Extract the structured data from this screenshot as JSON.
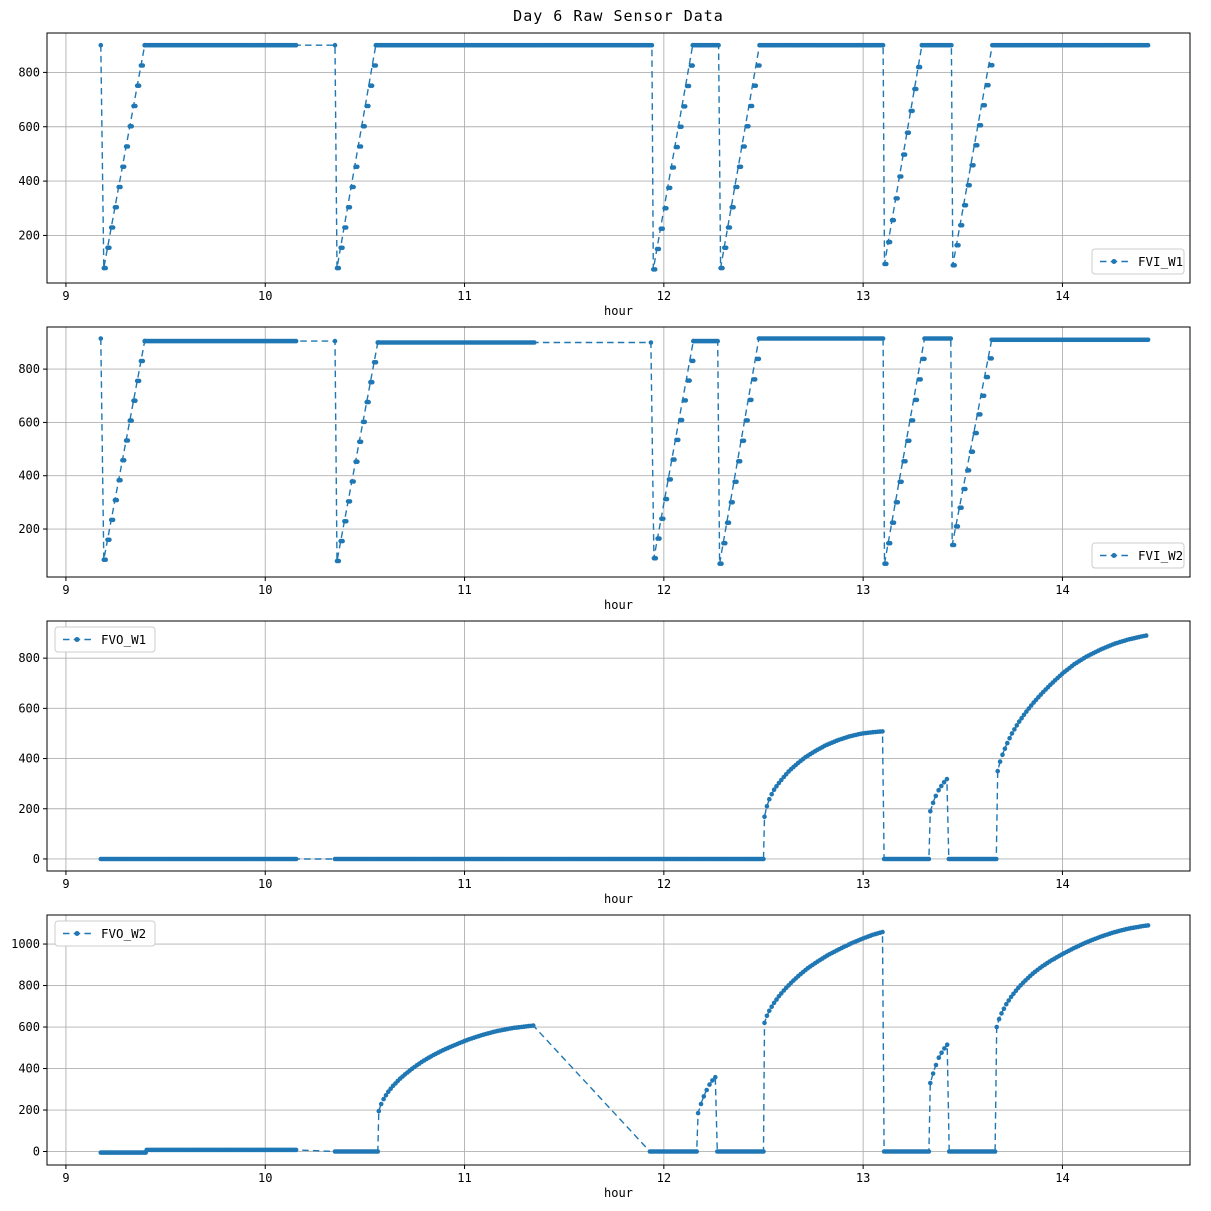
{
  "title": "Day 6 Raw Sensor Data",
  "xlabel": "hour",
  "colors": {
    "series": "#1f77b4",
    "grid": "#b0b0b0",
    "spine": "#000000",
    "text": "#000000",
    "legend_border": "#cccccc",
    "background": "#ffffff"
  },
  "chart_data": [
    {
      "type": "line",
      "series_name": "FVI_W1",
      "legend_loc": "lower right",
      "xlabel": "hour",
      "xlim": [
        8.905,
        14.64
      ],
      "ylim": [
        25,
        945
      ],
      "xticks": [
        9,
        10,
        11,
        12,
        13,
        14
      ],
      "yticks": [
        200,
        400,
        600,
        800
      ],
      "line_style": "dashed-with-dot-markers",
      "segments": [
        {
          "pts": [
            [
              9.175,
              900
            ]
          ]
        },
        {
          "dt": 0.0095,
          "stair": true,
          "pts": [
            [
              9.19,
              80
            ],
            [
              9.395,
              900
            ]
          ]
        },
        {
          "dt": 0.008,
          "pts": [
            [
              9.4,
              900
            ],
            [
              10.155,
              900
            ]
          ]
        },
        {
          "gap": true,
          "pts": [
            [
              10.155,
              900
            ],
            [
              10.35,
              900
            ]
          ]
        },
        {
          "pts": [
            [
              10.35,
              900
            ]
          ]
        },
        {
          "dt": 0.0095,
          "stair": true,
          "pts": [
            [
              10.36,
              80
            ],
            [
              10.555,
              900
            ]
          ]
        },
        {
          "dt": 0.008,
          "pts": [
            [
              10.56,
              900
            ],
            [
              11.94,
              900
            ]
          ]
        },
        {
          "dt": 0.0095,
          "stair": true,
          "pts": [
            [
              11.947,
              75
            ],
            [
              12.145,
              900
            ]
          ]
        },
        {
          "dt": 0.008,
          "pts": [
            [
              12.15,
              900
            ],
            [
              12.275,
              900
            ]
          ]
        },
        {
          "dt": 0.0095,
          "stair": true,
          "pts": [
            [
              12.285,
              80
            ],
            [
              12.48,
              900
            ]
          ]
        },
        {
          "dt": 0.008,
          "pts": [
            [
              12.487,
              900
            ],
            [
              13.1,
              900
            ]
          ]
        },
        {
          "dt": 0.0095,
          "stair": true,
          "pts": [
            [
              13.107,
              95
            ],
            [
              13.295,
              900
            ]
          ]
        },
        {
          "dt": 0.008,
          "pts": [
            [
              13.305,
              900
            ],
            [
              13.443,
              900
            ]
          ]
        },
        {
          "dt": 0.0095,
          "stair": true,
          "pts": [
            [
              13.45,
              90
            ],
            [
              13.648,
              900
            ]
          ]
        },
        {
          "dt": 0.008,
          "pts": [
            [
              13.655,
              900
            ],
            [
              14.43,
              900
            ]
          ]
        }
      ]
    },
    {
      "type": "line",
      "series_name": "FVI_W2",
      "legend_loc": "lower right",
      "xlabel": "hour",
      "xlim": [
        8.905,
        14.64
      ],
      "ylim": [
        20,
        958
      ],
      "xticks": [
        9,
        10,
        11,
        12,
        13,
        14
      ],
      "yticks": [
        200,
        400,
        600,
        800
      ],
      "line_style": "dashed-with-dot-markers",
      "segments": [
        {
          "pts": [
            [
              9.175,
              915
            ]
          ]
        },
        {
          "dt": 0.0095,
          "stair": true,
          "pts": [
            [
              9.19,
              85
            ],
            [
              9.395,
              905
            ]
          ]
        },
        {
          "dt": 0.008,
          "pts": [
            [
              9.4,
              905
            ],
            [
              10.155,
              905
            ]
          ]
        },
        {
          "gap": true,
          "pts": [
            [
              10.155,
              905
            ],
            [
              10.35,
              905
            ]
          ]
        },
        {
          "pts": [
            [
              10.35,
              905
            ]
          ]
        },
        {
          "dt": 0.0095,
          "stair": true,
          "pts": [
            [
              10.36,
              80
            ],
            [
              10.565,
              900
            ]
          ]
        },
        {
          "dt": 0.008,
          "pts": [
            [
              10.57,
              900
            ],
            [
              11.35,
              900
            ]
          ]
        },
        {
          "gap": true,
          "pts": [
            [
              11.35,
              900
            ],
            [
              11.935,
              900
            ]
          ]
        },
        {
          "pts": [
            [
              11.935,
              900
            ]
          ]
        },
        {
          "dt": 0.0095,
          "stair": true,
          "pts": [
            [
              11.95,
              90
            ],
            [
              12.148,
              905
            ]
          ]
        },
        {
          "dt": 0.008,
          "pts": [
            [
              12.153,
              905
            ],
            [
              12.27,
              905
            ]
          ]
        },
        {
          "dt": 0.0095,
          "stair": true,
          "pts": [
            [
              12.28,
              70
            ],
            [
              12.477,
              915
            ]
          ]
        },
        {
          "dt": 0.008,
          "pts": [
            [
              12.483,
              915
            ],
            [
              13.1,
              915
            ]
          ]
        },
        {
          "dt": 0.0095,
          "stair": true,
          "pts": [
            [
              13.107,
              70
            ],
            [
              13.308,
              915
            ]
          ]
        },
        {
          "dt": 0.008,
          "pts": [
            [
              13.315,
              915
            ],
            [
              13.44,
              915
            ]
          ]
        },
        {
          "dt": 0.0095,
          "stair": true,
          "pts": [
            [
              13.447,
              140
            ],
            [
              13.645,
              910
            ]
          ]
        },
        {
          "dt": 0.008,
          "pts": [
            [
              13.652,
              910
            ],
            [
              14.43,
              910
            ]
          ]
        }
      ]
    },
    {
      "type": "line",
      "series_name": "FVO_W1",
      "legend_loc": "upper left",
      "xlabel": "hour",
      "xlim": [
        8.905,
        14.64
      ],
      "ylim": [
        -48,
        948
      ],
      "xticks": [
        9,
        10,
        11,
        12,
        13,
        14
      ],
      "yticks": [
        0,
        200,
        400,
        600,
        800
      ],
      "line_style": "dashed-with-dot-markers",
      "segments": [
        {
          "dt": 0.008,
          "pts": [
            [
              9.175,
              0
            ],
            [
              10.155,
              0
            ]
          ]
        },
        {
          "gap": true,
          "pts": [
            [
              10.155,
              0
            ],
            [
              10.35,
              0
            ]
          ]
        },
        {
          "dt": 0.008,
          "pts": [
            [
              10.35,
              0
            ],
            [
              12.5,
              0
            ]
          ]
        },
        {
          "dt": 0.012,
          "pts": [
            [
              12.505,
              168
            ],
            [
              12.515,
              205
            ],
            [
              12.53,
              240
            ],
            [
              12.55,
              272
            ],
            [
              12.575,
              300
            ],
            [
              12.6,
              325
            ],
            [
              12.63,
              352
            ],
            [
              12.67,
              380
            ],
            [
              12.71,
              405
            ],
            [
              12.76,
              430
            ],
            [
              12.81,
              452
            ],
            [
              12.87,
              472
            ],
            [
              12.93,
              488
            ],
            [
              12.99,
              499
            ],
            [
              13.05,
              505
            ],
            [
              13.097,
              508
            ]
          ]
        },
        {
          "dt": 0.008,
          "pts": [
            [
              13.105,
              0
            ],
            [
              13.33,
              0
            ]
          ]
        },
        {
          "dt": 0.015,
          "pts": [
            [
              13.337,
              190
            ],
            [
              13.357,
              238
            ],
            [
              13.377,
              272
            ],
            [
              13.4,
              300
            ],
            [
              13.42,
              318
            ]
          ]
        },
        {
          "dt": 0.008,
          "pts": [
            [
              13.43,
              0
            ],
            [
              13.668,
              0
            ]
          ]
        },
        {
          "dt": 0.012,
          "pts": [
            [
              13.675,
              350
            ],
            [
              13.687,
              388
            ],
            [
              13.702,
              422
            ],
            [
              13.722,
              460
            ],
            [
              13.747,
              500
            ],
            [
              13.777,
              540
            ],
            [
              13.812,
              580
            ],
            [
              13.852,
              620
            ],
            [
              13.897,
              660
            ],
            [
              13.947,
              700
            ],
            [
              14.002,
              740
            ],
            [
              14.06,
              776
            ],
            [
              14.12,
              806
            ],
            [
              14.19,
              834
            ],
            [
              14.26,
              857
            ],
            [
              14.33,
              874
            ],
            [
              14.4,
              887
            ],
            [
              14.42,
              890
            ]
          ]
        }
      ]
    },
    {
      "type": "line",
      "series_name": "FVO_W2",
      "legend_loc": "upper left",
      "xlabel": "hour",
      "xlim": [
        8.905,
        14.64
      ],
      "ylim": [
        -65,
        1140
      ],
      "xticks": [
        9,
        10,
        11,
        12,
        13,
        14
      ],
      "yticks": [
        0,
        200,
        400,
        600,
        800,
        1000
      ],
      "line_style": "dashed-with-dot-markers",
      "segments": [
        {
          "dt": 0.008,
          "pts": [
            [
              9.175,
              -5
            ],
            [
              9.4,
              -5
            ]
          ]
        },
        {
          "dt": 0.008,
          "pts": [
            [
              9.405,
              8
            ],
            [
              10.155,
              8
            ]
          ]
        },
        {
          "gap": true,
          "pts": [
            [
              10.155,
              8
            ],
            [
              10.35,
              0
            ]
          ]
        },
        {
          "dt": 0.008,
          "pts": [
            [
              10.35,
              0
            ],
            [
              10.565,
              0
            ]
          ]
        },
        {
          "dt": 0.012,
          "pts": [
            [
              10.57,
              195
            ],
            [
              10.58,
              225
            ],
            [
              10.595,
              255
            ],
            [
              10.615,
              285
            ],
            [
              10.64,
              315
            ],
            [
              10.67,
              345
            ],
            [
              10.705,
              375
            ],
            [
              10.745,
              405
            ],
            [
              10.79,
              435
            ],
            [
              10.84,
              463
            ],
            [
              10.895,
              490
            ],
            [
              10.955,
              515
            ],
            [
              11.02,
              540
            ],
            [
              11.09,
              562
            ],
            [
              11.16,
              580
            ],
            [
              11.24,
              595
            ],
            [
              11.31,
              603
            ],
            [
              11.345,
              607
            ]
          ]
        },
        {
          "gap": true,
          "pts": [
            [
              11.345,
              607
            ],
            [
              11.93,
              0
            ]
          ]
        },
        {
          "dt": 0.008,
          "pts": [
            [
              11.93,
              0
            ],
            [
              12.165,
              0
            ]
          ]
        },
        {
          "dt": 0.015,
          "pts": [
            [
              12.172,
              185
            ],
            [
              12.19,
              240
            ],
            [
              12.208,
              283
            ],
            [
              12.226,
              318
            ],
            [
              12.244,
              343
            ],
            [
              12.258,
              358
            ]
          ]
        },
        {
          "dt": 0.008,
          "pts": [
            [
              12.268,
              0
            ],
            [
              12.5,
              0
            ]
          ]
        },
        {
          "dt": 0.012,
          "pts": [
            [
              12.505,
              620
            ],
            [
              12.515,
              650
            ],
            [
              12.53,
              680
            ],
            [
              12.55,
              712
            ],
            [
              12.575,
              745
            ],
            [
              12.605,
              780
            ],
            [
              12.64,
              815
            ],
            [
              12.68,
              850
            ],
            [
              12.72,
              882
            ],
            [
              12.77,
              915
            ],
            [
              12.82,
              945
            ],
            [
              12.88,
              975
            ],
            [
              12.94,
              1003
            ],
            [
              13.0,
              1027
            ],
            [
              13.05,
              1045
            ],
            [
              13.097,
              1058
            ]
          ]
        },
        {
          "dt": 0.008,
          "pts": [
            [
              13.105,
              0
            ],
            [
              13.33,
              0
            ]
          ]
        },
        {
          "dt": 0.015,
          "pts": [
            [
              13.337,
              330
            ],
            [
              13.357,
              395
            ],
            [
              13.377,
              448
            ],
            [
              13.4,
              487
            ],
            [
              13.422,
              515
            ]
          ]
        },
        {
          "dt": 0.008,
          "pts": [
            [
              13.432,
              0
            ],
            [
              13.662,
              0
            ]
          ]
        },
        {
          "dt": 0.012,
          "pts": [
            [
              13.67,
              600
            ],
            [
              13.682,
              638
            ],
            [
              13.697,
              672
            ],
            [
              13.717,
              708
            ],
            [
              13.742,
              745
            ],
            [
              13.772,
              782
            ],
            [
              13.807,
              818
            ],
            [
              13.847,
              854
            ],
            [
              13.892,
              888
            ],
            [
              13.942,
              920
            ],
            [
              13.997,
              950
            ],
            [
              14.057,
              980
            ],
            [
              14.12,
              1008
            ],
            [
              14.19,
              1035
            ],
            [
              14.26,
              1057
            ],
            [
              14.33,
              1074
            ],
            [
              14.4,
              1086
            ],
            [
              14.43,
              1090
            ]
          ]
        }
      ]
    }
  ]
}
